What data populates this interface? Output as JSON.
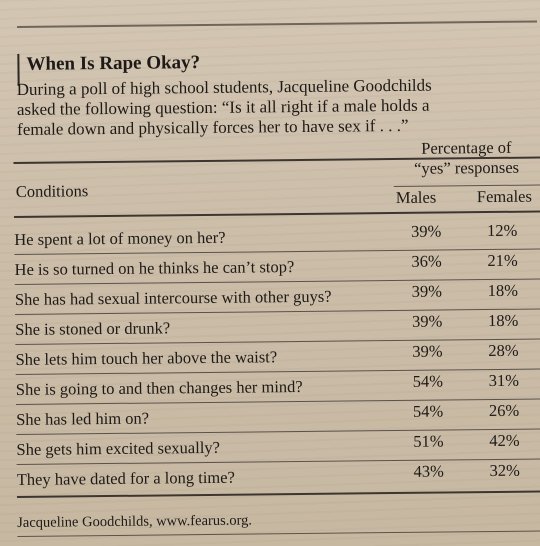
{
  "title": "When Is Rape Okay?",
  "intro_lines": [
    "During a poll of high school students, Jacqueline Goodchilds",
    "asked the following question: “Is it all right if a male holds a",
    "female down and physically forces her to have sex if . . .”"
  ],
  "table": {
    "percentage_header": [
      "Percentage of",
      "“yes” responses"
    ],
    "conditions_header": "Conditions",
    "males_header": "Males",
    "females_header": "Females",
    "rows": [
      {
        "condition": "He spent a lot of money on her?",
        "males": "39%",
        "females": "12%"
      },
      {
        "condition": "He is so turned on he thinks he can’t stop?",
        "males": "36%",
        "females": "21%"
      },
      {
        "condition": "She has had sexual intercourse with other guys?",
        "males": "39%",
        "females": "18%"
      },
      {
        "condition": "She is stoned or drunk?",
        "males": "39%",
        "females": "18%"
      },
      {
        "condition": "She lets him touch her above the waist?",
        "males": "39%",
        "females": "28%"
      },
      {
        "condition": "She is going to and then changes her mind?",
        "males": "54%",
        "females": "31%"
      },
      {
        "condition": "She has led him on?",
        "males": "54%",
        "females": "26%"
      },
      {
        "condition": "She gets him excited sexually?",
        "males": "51%",
        "females": "42%"
      },
      {
        "condition": "They have dated for a long time?",
        "males": "43%",
        "females": "32%"
      }
    ]
  },
  "source": "Jacqueline Goodchilds, www.fearus.org."
}
